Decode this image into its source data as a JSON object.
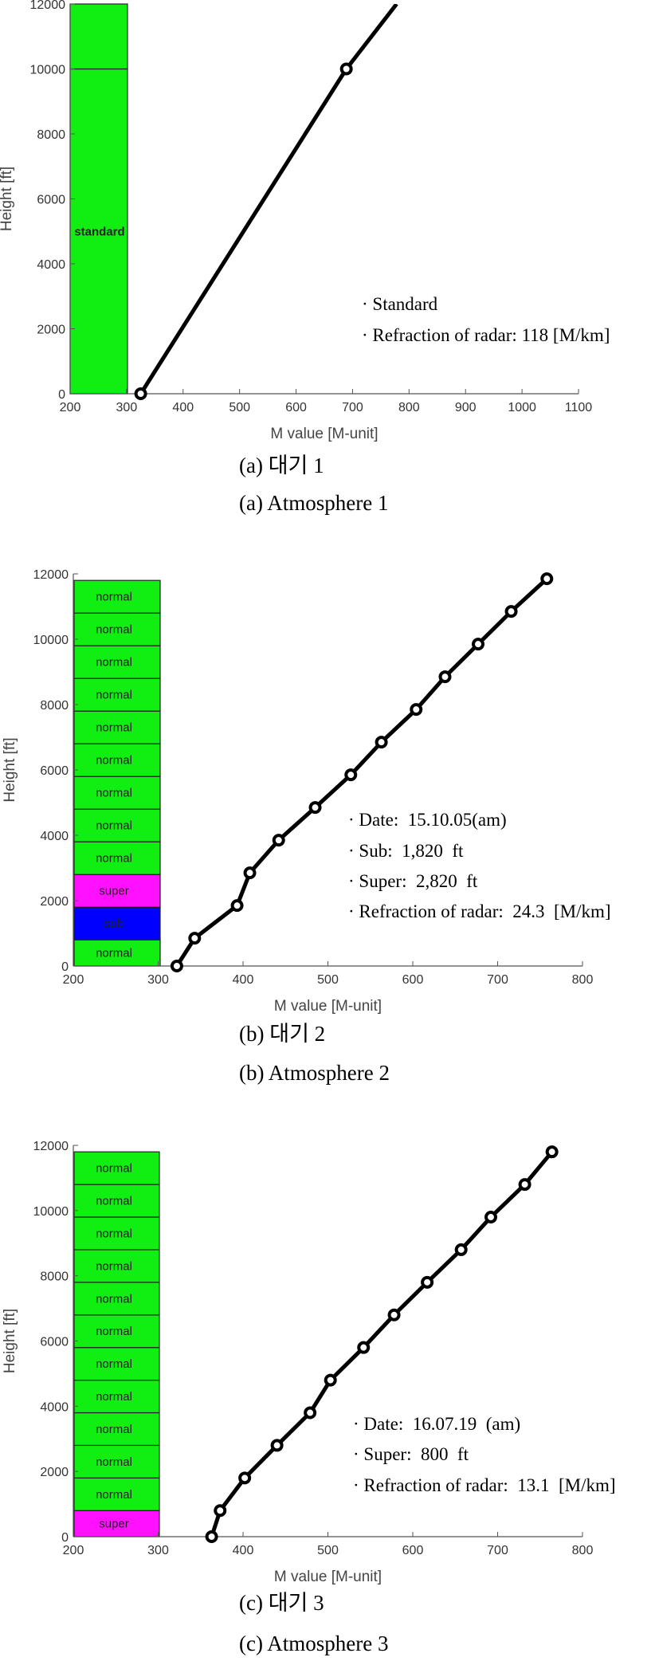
{
  "chart_data": [
    {
      "type": "line",
      "xlabel": "M value [M-unit]",
      "ylabel": "Height [ft]",
      "xlim": [
        200,
        1100
      ],
      "ylim": [
        0,
        12000
      ],
      "xticks": [
        "200",
        "300",
        "400",
        "500",
        "600",
        "700",
        "800",
        "900",
        "1000",
        "1100"
      ],
      "yticks": [
        "0",
        "2000",
        "4000",
        "6000",
        "8000",
        "10000",
        "12000"
      ],
      "grid": false,
      "layers": [
        {
          "label": "standard",
          "from": 0,
          "to": 10000,
          "color": "#11ee11"
        },
        {
          "label": "",
          "from": 10000,
          "to": 12000,
          "color": "#11ee11"
        }
      ],
      "series": [
        {
          "x": [
            325,
            689,
            778
          ],
          "y": [
            0,
            10000,
            12000
          ],
          "markers": [
            true,
            true,
            false
          ]
        }
      ],
      "annotations": [
        "· Standard",
        "· Refraction of radar: 118 [M/km]"
      ],
      "caption_ko": "(a) 대기 1",
      "caption_en": "(a) Atmosphere 1"
    },
    {
      "type": "line",
      "xlabel": "M value [M-unit]",
      "ylabel": "Height [ft]",
      "xlim": [
        200,
        800
      ],
      "ylim": [
        0,
        12000
      ],
      "xticks": [
        "200",
        "300",
        "400",
        "500",
        "600",
        "700",
        "800"
      ],
      "yticks": [
        "0",
        "2000",
        "4000",
        "6000",
        "8000",
        "10000",
        "12000"
      ],
      "grid": false,
      "layers": [
        {
          "label": "normal",
          "from": 0,
          "to": 800,
          "color": "#11ee11"
        },
        {
          "label": "sub",
          "from": 800,
          "to": 1800,
          "color": "#0000ff"
        },
        {
          "label": "super",
          "from": 1800,
          "to": 2800,
          "color": "#ff11ff"
        },
        {
          "label": "normal",
          "from": 2800,
          "to": 3800,
          "color": "#11ee11"
        },
        {
          "label": "normal",
          "from": 3800,
          "to": 4800,
          "color": "#11ee11"
        },
        {
          "label": "normal",
          "from": 4800,
          "to": 5800,
          "color": "#11ee11"
        },
        {
          "label": "normal",
          "from": 5800,
          "to": 6800,
          "color": "#11ee11"
        },
        {
          "label": "normal",
          "from": 6800,
          "to": 7800,
          "color": "#11ee11"
        },
        {
          "label": "normal",
          "from": 7800,
          "to": 8800,
          "color": "#11ee11"
        },
        {
          "label": "normal",
          "from": 8800,
          "to": 9800,
          "color": "#11ee11"
        },
        {
          "label": "normal",
          "from": 9800,
          "to": 10800,
          "color": "#11ee11"
        },
        {
          "label": "normal",
          "from": 10800,
          "to": 11800,
          "color": "#11ee11"
        }
      ],
      "series": [
        {
          "x": [
            322,
            343,
            393,
            408,
            442,
            485,
            527,
            563,
            604,
            638,
            677,
            716,
            758
          ],
          "y": [
            0,
            850,
            1850,
            2850,
            3850,
            4850,
            5850,
            6850,
            7850,
            8850,
            9850,
            10850,
            11850
          ]
        }
      ],
      "annotations": [
        "· Date:  15.10.05(am)",
        "· Sub:  1,820  ft",
        "· Super:  2,820  ft",
        "· Refraction of radar:  24.3  [M/km]"
      ],
      "caption_ko": "(b) 대기 2",
      "caption_en": "(b) Atmosphere 2"
    },
    {
      "type": "line",
      "xlabel": "M value [M-unit]",
      "ylabel": "Height [ft]",
      "xlim": [
        200,
        800
      ],
      "ylim": [
        0,
        12000
      ],
      "xticks": [
        "200",
        "300",
        "400",
        "500",
        "600",
        "700",
        "800"
      ],
      "yticks": [
        "0",
        "2000",
        "4000",
        "6000",
        "8000",
        "10000",
        "12000"
      ],
      "grid": false,
      "layers": [
        {
          "label": "super",
          "from": 0,
          "to": 800,
          "color": "#ff11ff"
        },
        {
          "label": "normal",
          "from": 800,
          "to": 1800,
          "color": "#11ee11"
        },
        {
          "label": "normal",
          "from": 1800,
          "to": 2800,
          "color": "#11ee11"
        },
        {
          "label": "normal",
          "from": 2800,
          "to": 3800,
          "color": "#11ee11"
        },
        {
          "label": "normal",
          "from": 3800,
          "to": 4800,
          "color": "#11ee11"
        },
        {
          "label": "normal",
          "from": 4800,
          "to": 5800,
          "color": "#11ee11"
        },
        {
          "label": "normal",
          "from": 5800,
          "to": 6800,
          "color": "#11ee11"
        },
        {
          "label": "normal",
          "from": 6800,
          "to": 7800,
          "color": "#11ee11"
        },
        {
          "label": "normal",
          "from": 7800,
          "to": 8800,
          "color": "#11ee11"
        },
        {
          "label": "normal",
          "from": 8800,
          "to": 9800,
          "color": "#11ee11"
        },
        {
          "label": "normal",
          "from": 9800,
          "to": 10800,
          "color": "#11ee11"
        },
        {
          "label": "normal",
          "from": 10800,
          "to": 11800,
          "color": "#11ee11"
        }
      ],
      "series": [
        {
          "x": [
            363,
            373,
            402,
            440,
            479,
            503,
            542,
            578,
            617,
            657,
            692,
            732,
            764
          ],
          "y": [
            0,
            800,
            1800,
            2800,
            3800,
            4800,
            5800,
            6800,
            7800,
            8800,
            9800,
            10800,
            11800
          ]
        }
      ],
      "annotations": [
        "· Date:  16.07.19  (am)",
        "· Super:  800  ft",
        "· Refraction of radar:  13.1  [M/km]"
      ],
      "caption_ko": "(c) 대기 3",
      "caption_en": "(c) Atmosphere 3"
    }
  ]
}
